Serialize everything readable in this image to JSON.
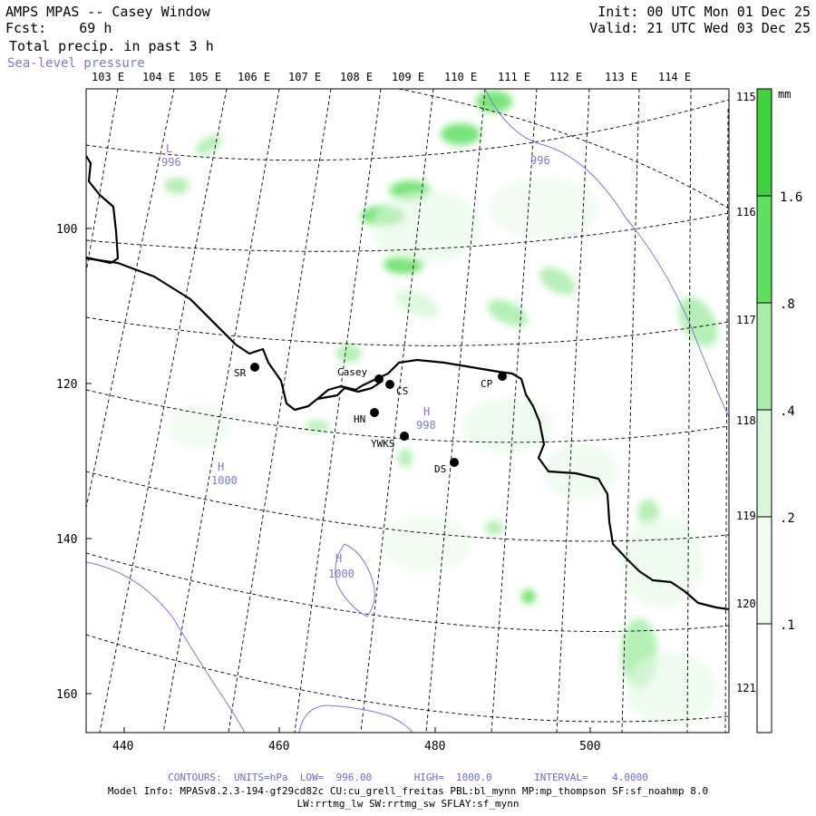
{
  "header": {
    "title": "AMPS MPAS -- Casey Window",
    "forecast": "Fcst:    69 h",
    "field": "Total precip. in past 3 h",
    "overlay": "Sea-level pressure",
    "init": "Init: 00 UTC Mon 01 Dec 25",
    "valid": "Valid: 21 UTC Wed 03 Dec 25"
  },
  "axes": {
    "x_ticks": [
      "440",
      "460",
      "480",
      "500"
    ],
    "y_ticks": [
      "100",
      "120",
      "140",
      "160"
    ],
    "lon_top": [
      "103 E",
      "104 E",
      "105 E",
      "106 E",
      "107 E",
      "108 E",
      "109 E",
      "110 E",
      "111 E",
      "112 E",
      "113 E",
      "114 E"
    ],
    "lon_right": [
      "115 E",
      "116 E",
      "117 E",
      "118 E",
      "119 E",
      "120 E",
      "121 E"
    ]
  },
  "colorbar": {
    "unit": "mm",
    "labels": [
      "1.6",
      ".8",
      ".4",
      ".2",
      ".1"
    ],
    "colors": [
      "#3ed23e",
      "#5fe05f",
      "#a8eda8",
      "#d8f7d8",
      "#f2fdf2",
      "#ffffff"
    ]
  },
  "stations": [
    {
      "id": "SR",
      "label": "SR"
    },
    {
      "id": "Casey",
      "label": "Casey"
    },
    {
      "id": "CS",
      "label": "CS"
    },
    {
      "id": "CP",
      "label": "CP"
    },
    {
      "id": "HN",
      "label": "HN"
    },
    {
      "id": "YWKS",
      "label": "YWKS"
    },
    {
      "id": "DS",
      "label": "DS"
    }
  ],
  "pressure_labels": [
    {
      "id": "L-996",
      "letter": "L",
      "value": "996"
    },
    {
      "id": "996-contour",
      "letter": "",
      "value": "996"
    },
    {
      "id": "H-998",
      "letter": "H",
      "value": "998"
    },
    {
      "id": "H-1000-west",
      "letter": "H",
      "value": "1000"
    },
    {
      "id": "H-1000-south",
      "letter": "H",
      "value": "1000"
    }
  ],
  "footer": {
    "contours": "CONTOURS:  UNITS=hPa  LOW=  996.00       HIGH=  1000.0       INTERVAL=    4.0000",
    "model_info": "Model Info: MPASv8.2.3-194-gf29cd82c CU:cu_grell_freitas PBL:bl_mynn MP:mp_thompson SF:sf_noahmp 8.0",
    "model_info2": "LW:rrtmg_lw SW:rrtmg_sw SFLAY:sf_mynn"
  },
  "colors": {
    "slp": "#7a7ad6",
    "coast": "#000000",
    "grid": "#000000"
  }
}
